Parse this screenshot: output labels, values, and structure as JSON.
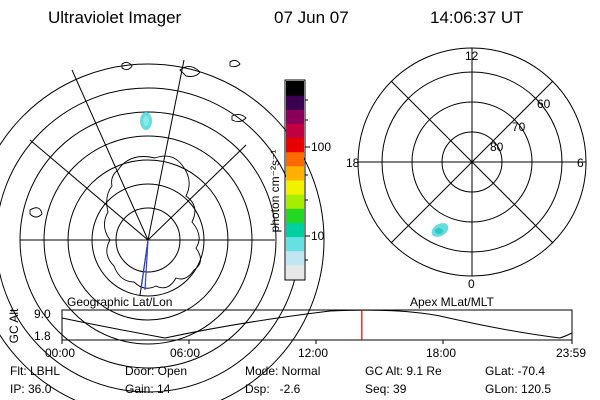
{
  "header": {
    "title": "Ultraviolet Imager",
    "date": "07 Jun 07",
    "time": "14:06:37 UT"
  },
  "geo_panel": {
    "label": "Geographic Lat/Lon"
  },
  "apex_panel": {
    "label": "Apex MLat/MLT",
    "mlt_labels": [
      "12",
      "18",
      "6",
      "0"
    ],
    "mlat_labels": [
      "60",
      "70",
      "80"
    ]
  },
  "colorbar": {
    "unit_label": "photon cm⁻²s⁻¹",
    "ticks": [
      "100",
      "10"
    ],
    "colors": [
      "#e8e8e8",
      "#bfe6f2",
      "#66e0e0",
      "#00cfa0",
      "#22d822",
      "#a6ee00",
      "#f2f200",
      "#ffb000",
      "#ff6a00",
      "#e80000",
      "#c00040",
      "#8a005a",
      "#3c0050",
      "#000000"
    ]
  },
  "timeline": {
    "y_label": "GC Alt",
    "y_max": "9.0",
    "y_min": "1.8",
    "x_labels": [
      "00:00",
      "06:00",
      "12:00",
      "18:00",
      "23:59"
    ],
    "current_time_hours": 14.11,
    "marker_color": "#e00000"
  },
  "info": {
    "filter": "Flt: LBHL",
    "door": "Door: Open",
    "mode": "Mode: Normal",
    "gc_alt": "GC Alt: 9.1 Re",
    "glat": "GLat: -70.4",
    "ip": "IP: 36.0",
    "gain": "Gain: 14",
    "dsp": "Dsp:   -2.6",
    "seq": "Seq: 39",
    "glon": "GLon: 120.5"
  }
}
